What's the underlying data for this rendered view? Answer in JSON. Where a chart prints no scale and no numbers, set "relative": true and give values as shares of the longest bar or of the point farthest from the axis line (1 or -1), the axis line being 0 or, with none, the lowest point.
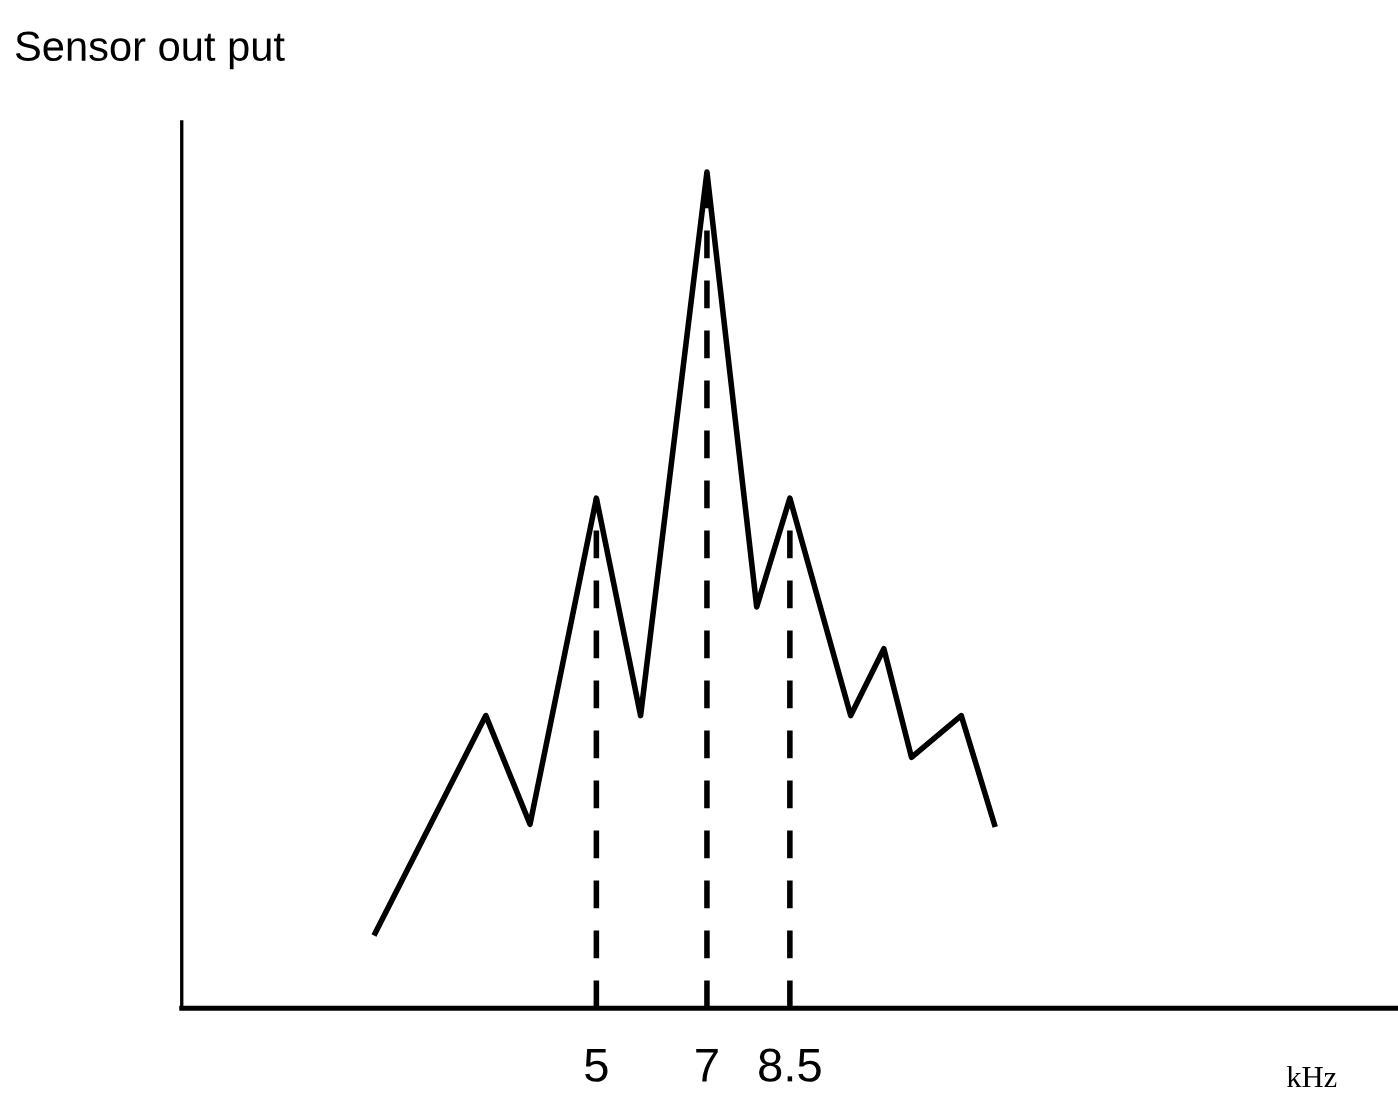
{
  "chart_data": {
    "type": "line",
    "title": "Sensor out put",
    "xlabel": "kHz",
    "relative": true,
    "tick_labels": "x",
    "grid": false,
    "legend": false,
    "marker": "none",
    "line_style": "solid",
    "xlim": [
      -2.5,
      19.5
    ],
    "xticks": [
      5,
      7,
      8.5
    ],
    "series": [
      {
        "color": "#000000",
        "x": [
          1.0,
          3.0,
          3.8,
          5,
          5.8,
          7,
          7.9,
          8.5,
          9.6,
          10.2,
          10.7,
          11.6,
          12.2
        ],
        "values": [
          0.09,
          0.35,
          0.22,
          0.61,
          0.35,
          1,
          0.48,
          0.61,
          0.35,
          0.43,
          0.3,
          0.35,
          0.22
        ]
      }
    ],
    "ref_lines": [
      {
        "axis": "x",
        "value": 5,
        "line_style": "dashed",
        "color": "#000000"
      },
      {
        "axis": "x",
        "value": 7,
        "line_style": "dashed",
        "color": "#000000"
      },
      {
        "axis": "x",
        "value": 8.5,
        "line_style": "dashed",
        "color": "#000000"
      }
    ]
  }
}
